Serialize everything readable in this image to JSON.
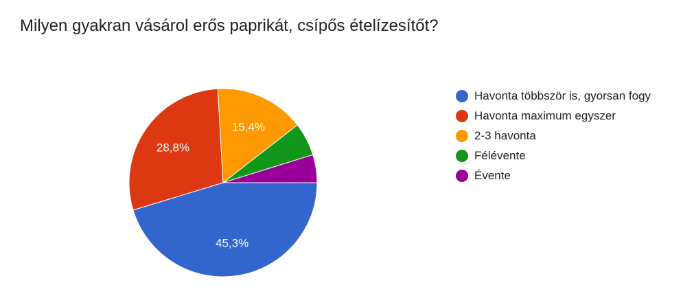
{
  "chart_data": {
    "type": "pie",
    "title": "Milyen gyakran vásárol erős paprikát, csípős ételízesítőt?",
    "slices": [
      {
        "label": "Havonta többször is, gyorsan fogy",
        "value": 45.3,
        "value_label": "45,3%",
        "color": "#3366cc"
      },
      {
        "label": "Havonta maximum egyszer",
        "value": 28.8,
        "value_label": "28,8%",
        "color": "#dc3912"
      },
      {
        "label": "2-3 havonta",
        "value": 15.4,
        "value_label": "15,4%",
        "color": "#ff9900"
      },
      {
        "label": "Félévente",
        "value": 5.7,
        "value_label": "",
        "color": "#109618"
      },
      {
        "label": "Évente",
        "value": 4.8,
        "value_label": "",
        "color": "#990099"
      }
    ],
    "legend_position": "right"
  }
}
